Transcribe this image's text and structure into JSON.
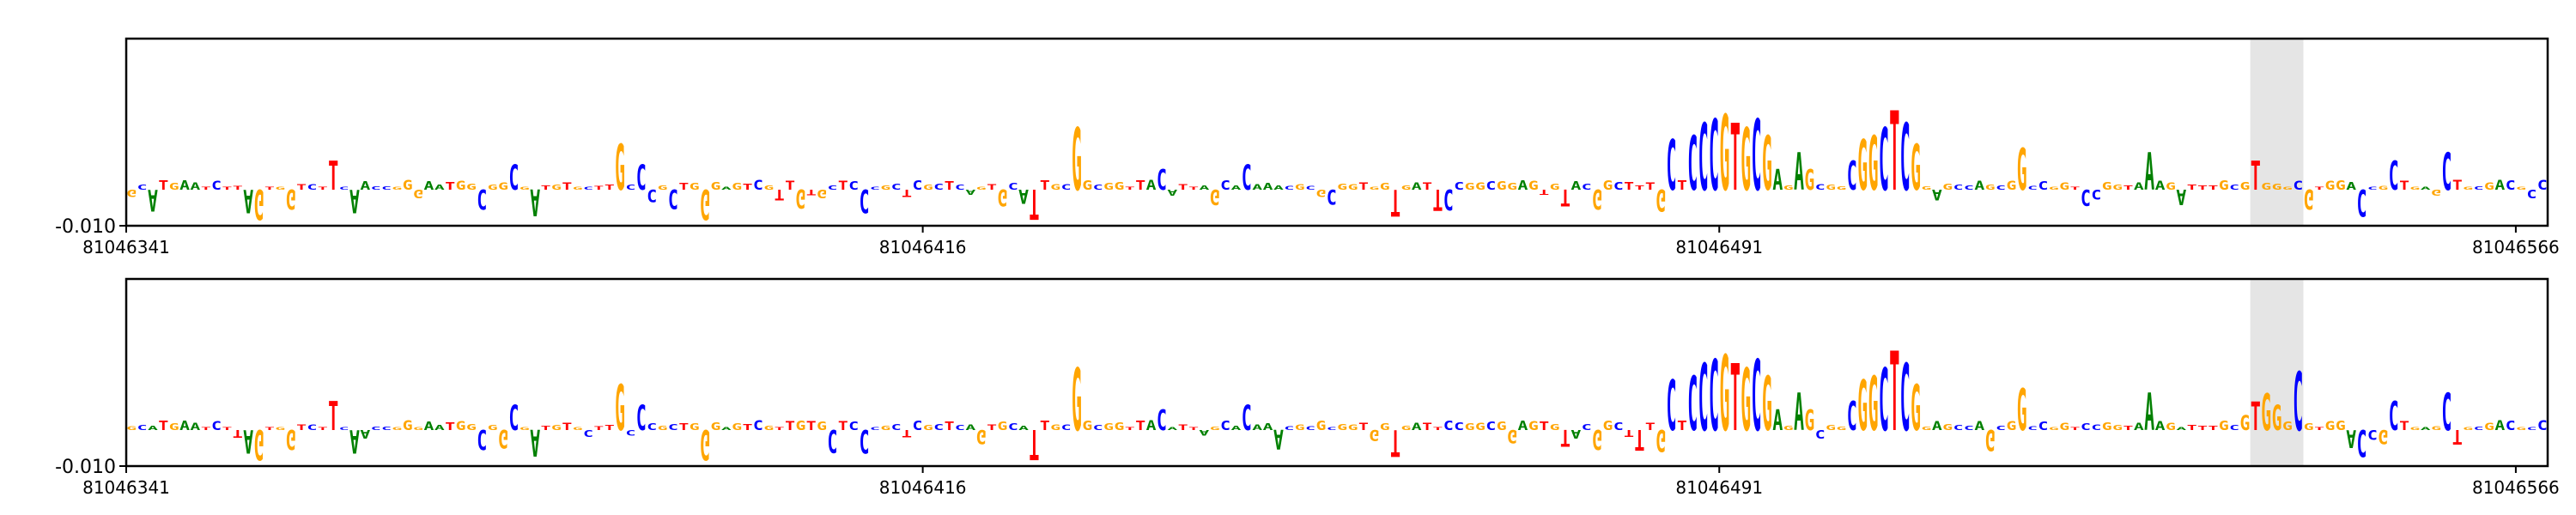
{
  "chart_data": [
    {
      "type": "sequence-logo",
      "panel": "top",
      "y_tick_label": "-0.010",
      "x_ticks": [
        "81046341",
        "81046416",
        "81046491",
        "81046566"
      ],
      "highlight": {
        "start": 81046541,
        "end": 81046545
      },
      "sequence": "GCATGAATCTTAGTGGTCTTCAACCGGGAATGGCGGCGATGTGCTTGCCCGCTGGGAGTCGTTGTGCTCCCGCTCGCTCAGTGCATTGCGGCGGTTACATTAGCACAAACGCGCGGTGGTGATTCCGGCGGAGTGTACGGCTTTGCTCCCGTGCGAGAGCGGCGGCTCGGAGCCAGCGGCCGGTCCGGTAAAGATTTGCGTGGGCGTGGACCGCTGAGCTGCGACGCC"
    },
    {
      "type": "sequence-logo",
      "panel": "bottom",
      "y_tick_label": "-0.010",
      "x_ticks": [
        "81046341",
        "81046416",
        "81046491",
        "81046566"
      ],
      "highlight": {
        "start": 81046541,
        "end": 81046545
      },
      "sequence": "GCATGAATCTTAGTGGTCTTCAACCGGGAATGGCGGCGATGTGCTTGCCCGCTGGGAGTCGTTGTGCTCCCGCTCGCTCAGTGCATTGCGGCGGTTACATTAGCACAAACGCGCGGTGGTGATTCCGGCGGAGTGTACGGCTTTGCTCCCGTGCGAGAGCGGCGGCTCGGAGCCAGCGGCCGGTCCGGTAAAGATTTGCGTGGGCGTGGACCGCTGAGCTGCGACGCC"
    }
  ],
  "colors": {
    "A": "#008000",
    "C": "#0000ff",
    "G": "#ffa500",
    "T": "#ff0000",
    "highlight": "#e5e5e5"
  }
}
